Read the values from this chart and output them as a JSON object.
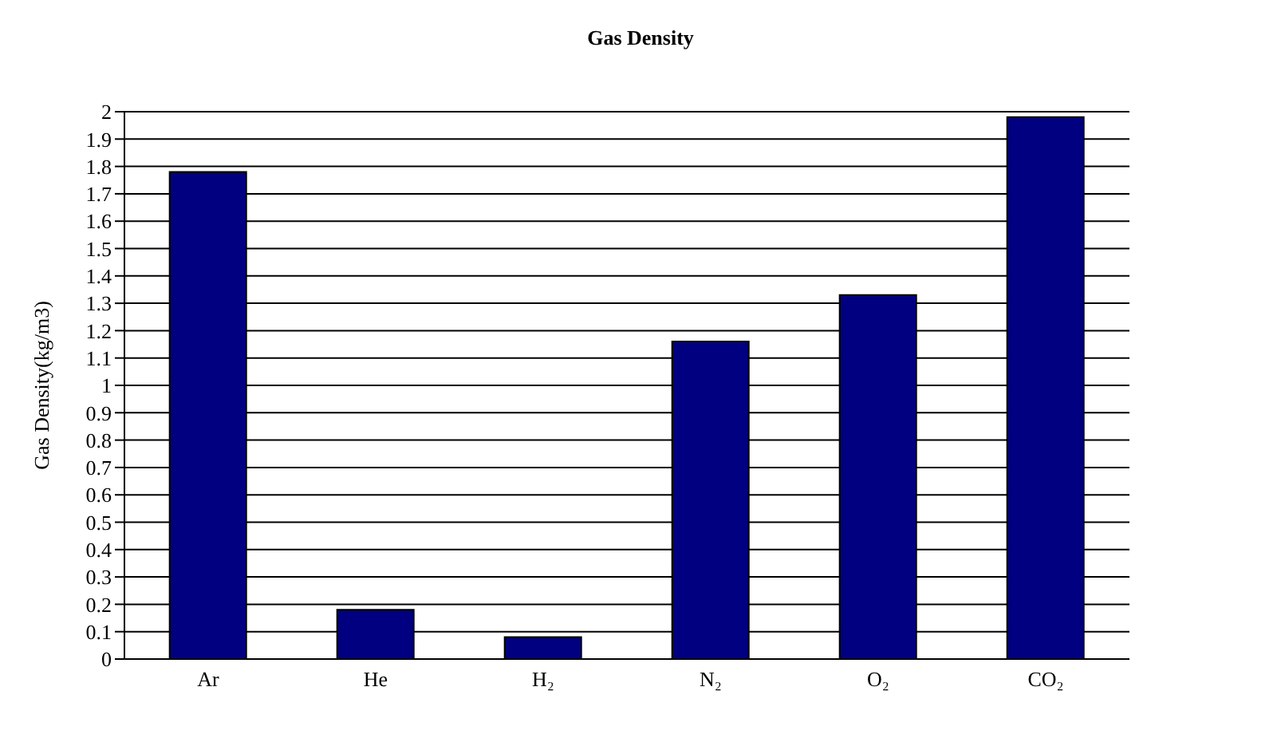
{
  "chart_data": {
    "type": "bar",
    "title": "Gas Density",
    "ylabel": "Gas Density(kg/m3)",
    "categories": [
      "Ar",
      "He",
      "H₂",
      "N₂",
      "O₂",
      "CO₂"
    ],
    "values": [
      1.78,
      0.18,
      0.08,
      1.16,
      1.33,
      1.98
    ],
    "color": "#000080",
    "ylim": [
      0,
      2
    ],
    "yticks": [
      0,
      0.1,
      0.2,
      0.3,
      0.4,
      0.5,
      0.6,
      0.7,
      0.8,
      0.9,
      1,
      1.1,
      1.2,
      1.3,
      1.4,
      1.5,
      1.6,
      1.7,
      1.8,
      1.9,
      2
    ],
    "grid": "y",
    "legend": false
  }
}
